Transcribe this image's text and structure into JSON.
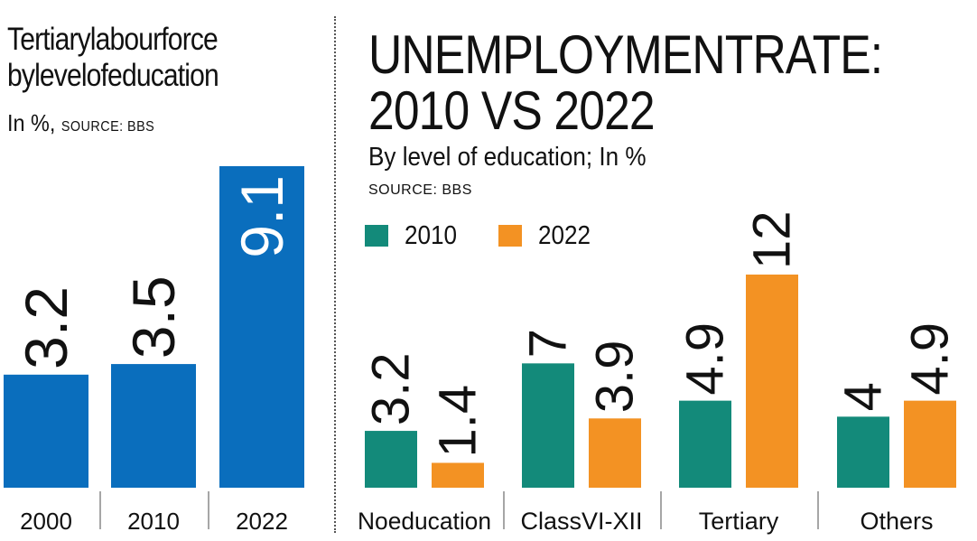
{
  "chart_data": [
    {
      "type": "bar",
      "title_lines": [
        "Tertiarylabourforce",
        "bylevelofeducation"
      ],
      "subtitle": "In %,",
      "source": "SOURCE: BBS",
      "categories": [
        "2000",
        "2010",
        "2022"
      ],
      "values": [
        3.2,
        3.5,
        9.1
      ],
      "value_labels": [
        "3.2",
        "3.5",
        "9.1"
      ],
      "color": "#0a6ebd",
      "ylim": [
        0,
        10
      ]
    },
    {
      "type": "bar",
      "title_lines": [
        "UNEMPLOYMENTRATE:",
        "2010 VS 2022"
      ],
      "subtitle": "By level of education; In %",
      "source": "SOURCE: BBS",
      "categories": [
        "Noeducation",
        "ClassVI-XII",
        "Tertiary",
        "Others"
      ],
      "series": [
        {
          "name": "2010",
          "color": "#138a7a",
          "values": [
            3.2,
            7,
            4.9,
            4
          ],
          "value_labels": [
            "3.2",
            "7",
            "4.9",
            "4"
          ]
        },
        {
          "name": "2022",
          "color": "#f39223",
          "values": [
            1.4,
            3.9,
            12,
            4.9
          ],
          "value_labels": [
            "1.4",
            "3.9",
            "12",
            "4.9"
          ]
        }
      ],
      "legend_position": "top-left",
      "ylim": [
        0,
        14
      ]
    }
  ]
}
